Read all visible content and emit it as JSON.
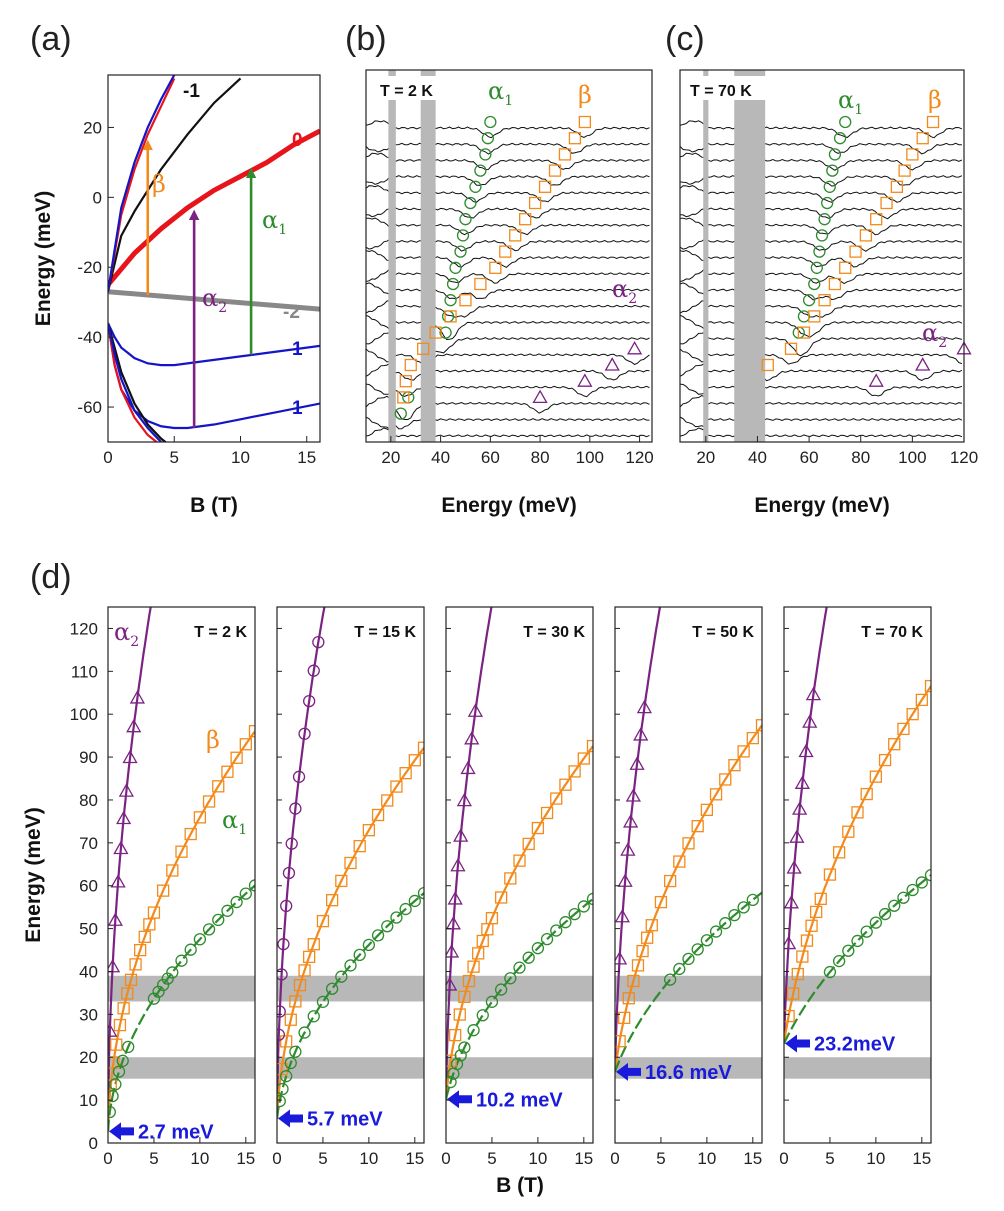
{
  "colors": {
    "alpha1": "#2e8b2e",
    "beta": "#f28a1c",
    "alpha2": "#7b2382",
    "gap": "#1a1adb",
    "band": "#b8b8b8",
    "red": "#e8141b",
    "blue": "#1515c8",
    "black": "#111111",
    "gray": "#888888"
  },
  "chart_data": [
    {
      "type": "line",
      "panel": "(a)",
      "title": "",
      "xlabel": "B (T)",
      "ylabel": "Energy (meV)",
      "xlim": [
        0,
        16
      ],
      "ylim": [
        -70,
        35
      ],
      "xticks": [
        "0",
        "5",
        "10",
        "15"
      ],
      "yticks": [
        "-60",
        "-40",
        "-20",
        "0",
        "20"
      ],
      "series": [
        {
          "name": "0",
          "color": "red",
          "thick": true,
          "x": [
            0,
            2,
            4,
            6,
            8,
            10,
            12,
            14,
            16
          ],
          "values": [
            -25,
            -16,
            -9,
            -3,
            2,
            6,
            10,
            15,
            19
          ]
        },
        {
          "name": "-2",
          "color": "gray",
          "thick": true,
          "x": [
            0,
            16
          ],
          "values": [
            -27,
            -32
          ]
        },
        {
          "name": "1",
          "color": "blue",
          "x": [
            0,
            0.5,
            1,
            2,
            3,
            4,
            5,
            6,
            8,
            10,
            12,
            14,
            16
          ],
          "values": [
            -36,
            -40,
            -43,
            -46,
            -47.5,
            -48,
            -48,
            -47.5,
            -46.5,
            -45.5,
            -44.5,
            -43.5,
            -42.5
          ]
        },
        {
          "name": "1",
          "color": "blue",
          "x": [
            0,
            0.5,
            1,
            2,
            3,
            4,
            5,
            6,
            7,
            8,
            10,
            12,
            14,
            16
          ],
          "values": [
            -36,
            -48,
            -55,
            -61,
            -64,
            -65.5,
            -66,
            -66,
            -65.5,
            -65,
            -63.5,
            -62,
            -60.5,
            -59
          ]
        },
        {
          "name": "-1",
          "color": "black",
          "x": [
            0,
            1,
            2,
            4,
            6,
            8,
            10
          ],
          "values": [
            -27,
            -11,
            -4,
            8,
            18,
            27,
            34
          ]
        },
        {
          "name": "",
          "color": "black",
          "x": [
            0,
            1,
            2,
            3,
            4,
            5
          ],
          "values": [
            -36,
            -50,
            -59,
            -65,
            -69,
            -72
          ]
        },
        {
          "name": "",
          "color": "red",
          "x": [
            0,
            0.5,
            1,
            2,
            3,
            4
          ],
          "values": [
            -36,
            -48,
            -55,
            -63,
            -68,
            -71
          ]
        },
        {
          "name": "",
          "color": "red",
          "x": [
            0,
            1,
            2,
            3,
            4,
            5
          ],
          "values": [
            -27,
            -5,
            8,
            18,
            26,
            34
          ]
        },
        {
          "name": "",
          "color": "blue",
          "x": [
            0,
            1,
            2,
            3,
            4,
            5
          ],
          "values": [
            -27,
            -3,
            10,
            20,
            28,
            35
          ]
        },
        {
          "name": "",
          "color": "blue",
          "x": [
            0,
            0.5,
            1,
            2,
            3,
            4
          ],
          "values": [
            -36,
            -45,
            -52,
            -61,
            -66,
            -70
          ]
        }
      ],
      "transitions": [
        {
          "label": "β",
          "color": "beta",
          "x": 3,
          "from": -28,
          "to": 15
        },
        {
          "label": "α₂",
          "color": "alpha2",
          "x": 6.5,
          "from": -66,
          "to": -5
        },
        {
          "label": "α₁",
          "color": "alpha1",
          "x": 10.8,
          "from": -45,
          "to": 7
        }
      ],
      "transition_labels": [
        {
          "greek": "β",
          "sub": "",
          "color": "beta"
        },
        {
          "greek": "α",
          "sub": "2",
          "color": "alpha2"
        },
        {
          "greek": "α",
          "sub": "1",
          "color": "alpha1"
        }
      ],
      "level_labels": [
        "-1",
        "0",
        "-2",
        "1",
        "1"
      ]
    },
    {
      "type": "line",
      "panel": "(b)",
      "title": "T = 2 K",
      "xlabel": "Energy (meV)",
      "ylabel": "",
      "xlim": [
        10,
        125
      ],
      "xticks": [
        "20",
        "40",
        "60",
        "80",
        "100",
        "120"
      ],
      "bands": [
        [
          19,
          22
        ],
        [
          32,
          38
        ]
      ],
      "spectra_count": 20,
      "peak_labels": [
        {
          "greek": "α",
          "sub": "1",
          "color": "alpha1"
        },
        {
          "greek": "β",
          "sub": "",
          "color": "beta"
        },
        {
          "greek": "α",
          "sub": "2",
          "color": "alpha2"
        }
      ],
      "markers": {
        "alpha1": [
          [
            60,
            0
          ],
          [
            59,
            1
          ],
          [
            58,
            2
          ],
          [
            56,
            3
          ],
          [
            54,
            4
          ],
          [
            52,
            5
          ],
          [
            50,
            6
          ],
          [
            49,
            7
          ],
          [
            48,
            8
          ],
          [
            46,
            9
          ],
          [
            45,
            10
          ],
          [
            44,
            11
          ],
          [
            43,
            12
          ],
          [
            42,
            13
          ],
          [
            27,
            17
          ],
          [
            24,
            18
          ]
        ],
        "beta": [
          [
            98,
            0
          ],
          [
            94,
            1
          ],
          [
            90,
            2
          ],
          [
            86,
            3
          ],
          [
            82,
            4
          ],
          [
            78,
            5
          ],
          [
            74,
            6
          ],
          [
            70,
            7
          ],
          [
            66,
            8
          ],
          [
            62,
            9
          ],
          [
            56,
            10
          ],
          [
            50,
            11
          ],
          [
            44,
            12
          ],
          [
            38,
            13
          ],
          [
            33,
            14
          ],
          [
            28,
            15
          ],
          [
            26,
            16
          ],
          [
            25,
            17
          ]
        ],
        "alpha2": [
          [
            118,
            14
          ],
          [
            109,
            15
          ],
          [
            98,
            16
          ],
          [
            80,
            17
          ]
        ]
      }
    },
    {
      "type": "line",
      "panel": "(c)",
      "title": "T = 70 K",
      "xlabel": "Energy (meV)",
      "ylabel": "",
      "xlim": [
        10,
        120
      ],
      "xticks": [
        "20",
        "40",
        "60",
        "80",
        "100",
        "120"
      ],
      "bands": [
        [
          19,
          21
        ],
        [
          31,
          43
        ]
      ],
      "spectra_count": 20,
      "peak_labels": [
        {
          "greek": "α",
          "sub": "1",
          "color": "alpha1"
        },
        {
          "greek": "β",
          "sub": "",
          "color": "beta"
        },
        {
          "greek": "α",
          "sub": "2",
          "color": "alpha2"
        }
      ],
      "markers": {
        "alpha1": [
          [
            74,
            0
          ],
          [
            72,
            1
          ],
          [
            70,
            2
          ],
          [
            69,
            3
          ],
          [
            68,
            4
          ],
          [
            67,
            5
          ],
          [
            66,
            6
          ],
          [
            65,
            7
          ],
          [
            64,
            8
          ],
          [
            63,
            9
          ],
          [
            62,
            10
          ],
          [
            60,
            11
          ],
          [
            58,
            12
          ],
          [
            56,
            13
          ]
        ],
        "beta": [
          [
            108,
            0
          ],
          [
            104,
            1
          ],
          [
            100,
            2
          ],
          [
            97,
            3
          ],
          [
            94,
            4
          ],
          [
            90,
            5
          ],
          [
            86,
            6
          ],
          [
            82,
            7
          ],
          [
            78,
            8
          ],
          [
            74,
            9
          ],
          [
            70,
            10
          ],
          [
            66,
            11
          ],
          [
            62,
            12
          ],
          [
            58,
            13
          ],
          [
            53,
            14
          ],
          [
            44,
            15
          ]
        ],
        "alpha2": [
          [
            120,
            14
          ],
          [
            104,
            15
          ],
          [
            86,
            16
          ]
        ]
      }
    },
    {
      "type": "scatter",
      "panel": "(d)",
      "xlabel": "B (T)",
      "ylabel": "Energy (meV)",
      "xlim": [
        0,
        16
      ],
      "ylim": [
        0,
        125
      ],
      "yticks": [
        "0",
        "10",
        "20",
        "30",
        "40",
        "50",
        "60",
        "70",
        "80",
        "90",
        "100",
        "110",
        "120"
      ],
      "xticks": [
        "0",
        "5",
        "10",
        "15"
      ],
      "bands": [
        [
          15,
          20
        ],
        [
          33,
          39
        ]
      ],
      "curve_labels": [
        {
          "greek": "α",
          "sub": "2",
          "color": "alpha2"
        },
        {
          "greek": "β",
          "sub": "",
          "color": "beta"
        },
        {
          "greek": "α",
          "sub": "1",
          "color": "alpha1"
        }
      ],
      "subpanels": [
        {
          "title": "T = 2 K",
          "gap": 2.7,
          "gap_label": "2.7 meV",
          "fit": {
            "alpha2": [
              2.7,
              58
            ],
            "beta": [
              2.7,
              24
            ],
            "alpha1": [
              2.7,
              15
            ]
          },
          "alpha2_x": [
            0.2,
            0.5,
            0.8,
            1.1,
            1.4,
            1.7,
            2.0,
            2.4,
            2.8,
            3.2
          ],
          "alpha2_marker": "triangle",
          "beta_x": [
            0.3,
            0.6,
            0.9,
            1.3,
            1.7,
            2.1,
            2.5,
            3,
            3.5,
            4,
            4.5,
            5,
            6,
            7,
            8,
            9,
            10,
            11,
            12,
            13,
            14,
            15,
            16
          ],
          "alpha1_x": [
            0.2,
            0.5,
            0.8,
            1.2,
            1.6,
            2.2,
            5,
            5.5,
            6,
            6.5,
            7,
            8,
            9,
            10,
            11,
            12,
            13,
            14,
            15,
            16
          ]
        },
        {
          "title": "T = 15 K",
          "gap": 5.7,
          "gap_label": "5.7 meV",
          "fit": {
            "alpha2": [
              5.7,
              55
            ],
            "beta": [
              5.7,
              23
            ],
            "alpha1": [
              5.7,
              14.5
            ]
          },
          "alpha2_x": [
            0.2,
            0.3,
            0.5,
            0.7,
            1.0,
            1.3,
            1.6,
            2.0,
            2.4,
            3.0,
            3.5,
            4.0,
            4.5
          ],
          "alpha2_marker": "circle",
          "beta_x": [
            0.5,
            1,
            1.5,
            2,
            2.5,
            3,
            3.5,
            4,
            5,
            6,
            7,
            8,
            9,
            10,
            11,
            12,
            13,
            14,
            15,
            16
          ],
          "alpha1_x": [
            0.3,
            0.6,
            1,
            1.5,
            2,
            3,
            4,
            5,
            6,
            7,
            8,
            9,
            10,
            11,
            12,
            13,
            14,
            15,
            16
          ]
        },
        {
          "title": "T = 30 K",
          "gap": 10.2,
          "gap_label": "10.2 meV",
          "fit": {
            "alpha2": [
              10.2,
              56
            ],
            "beta": [
              10.2,
              23
            ],
            "alpha1": [
              10.2,
              14
            ]
          },
          "alpha2_x": [
            0.4,
            0.6,
            0.8,
            1.0,
            1.3,
            1.6,
            2.0,
            2.4,
            2.8,
            3.2
          ],
          "alpha2_marker": "triangle",
          "beta_x": [
            0.5,
            1,
            1.5,
            2,
            2.5,
            3,
            3.5,
            4,
            4.5,
            5,
            6,
            7,
            8,
            9,
            10,
            11,
            12,
            13,
            14,
            15,
            16
          ],
          "alpha1_x": [
            0.5,
            0.8,
            1.2,
            1.6,
            2,
            3,
            4,
            5,
            6,
            7,
            8,
            9,
            10,
            11,
            12,
            13,
            14,
            15,
            16
          ]
        },
        {
          "title": "T = 50 K",
          "gap": 16.6,
          "gap_label": "16.6 meV",
          "fit": {
            "alpha2": [
              16.6,
              56
            ],
            "beta": [
              16.6,
              24
            ],
            "alpha1": [
              16.6,
              14
            ]
          },
          "alpha2_x": [
            0.5,
            0.8,
            1.1,
            1.4,
            1.7,
            2.0,
            2.4,
            2.8,
            3.2
          ],
          "alpha2_marker": "triangle",
          "beta_x": [
            0.5,
            1,
            1.5,
            2,
            2.5,
            3,
            3.5,
            4,
            5,
            6,
            7,
            8,
            9,
            10,
            11,
            12,
            13,
            14,
            15,
            16
          ],
          "alpha1_x": [
            6,
            7,
            8,
            9,
            10,
            11,
            12,
            13,
            14,
            15
          ]
        },
        {
          "title": "T = 70 K",
          "gap": 23.2,
          "gap_label": "23.2meV",
          "fit": {
            "alpha2": [
              23.2,
              57
            ],
            "beta": [
              23.2,
              26
            ],
            "alpha1": [
              23.2,
              14.5
            ]
          },
          "alpha2_x": [
            0.5,
            0.8,
            1.1,
            1.4,
            1.7,
            2.0,
            2.4,
            2.8,
            3.2
          ],
          "alpha2_marker": "triangle",
          "beta_x": [
            0.5,
            1,
            1.5,
            2,
            2.5,
            3,
            3.5,
            4,
            5,
            6,
            7,
            8,
            9,
            10,
            11,
            12,
            13,
            14,
            15,
            16
          ],
          "alpha1_x": [
            5,
            6,
            7,
            8,
            9,
            10,
            11,
            12,
            13,
            14,
            15,
            16
          ]
        }
      ]
    }
  ]
}
